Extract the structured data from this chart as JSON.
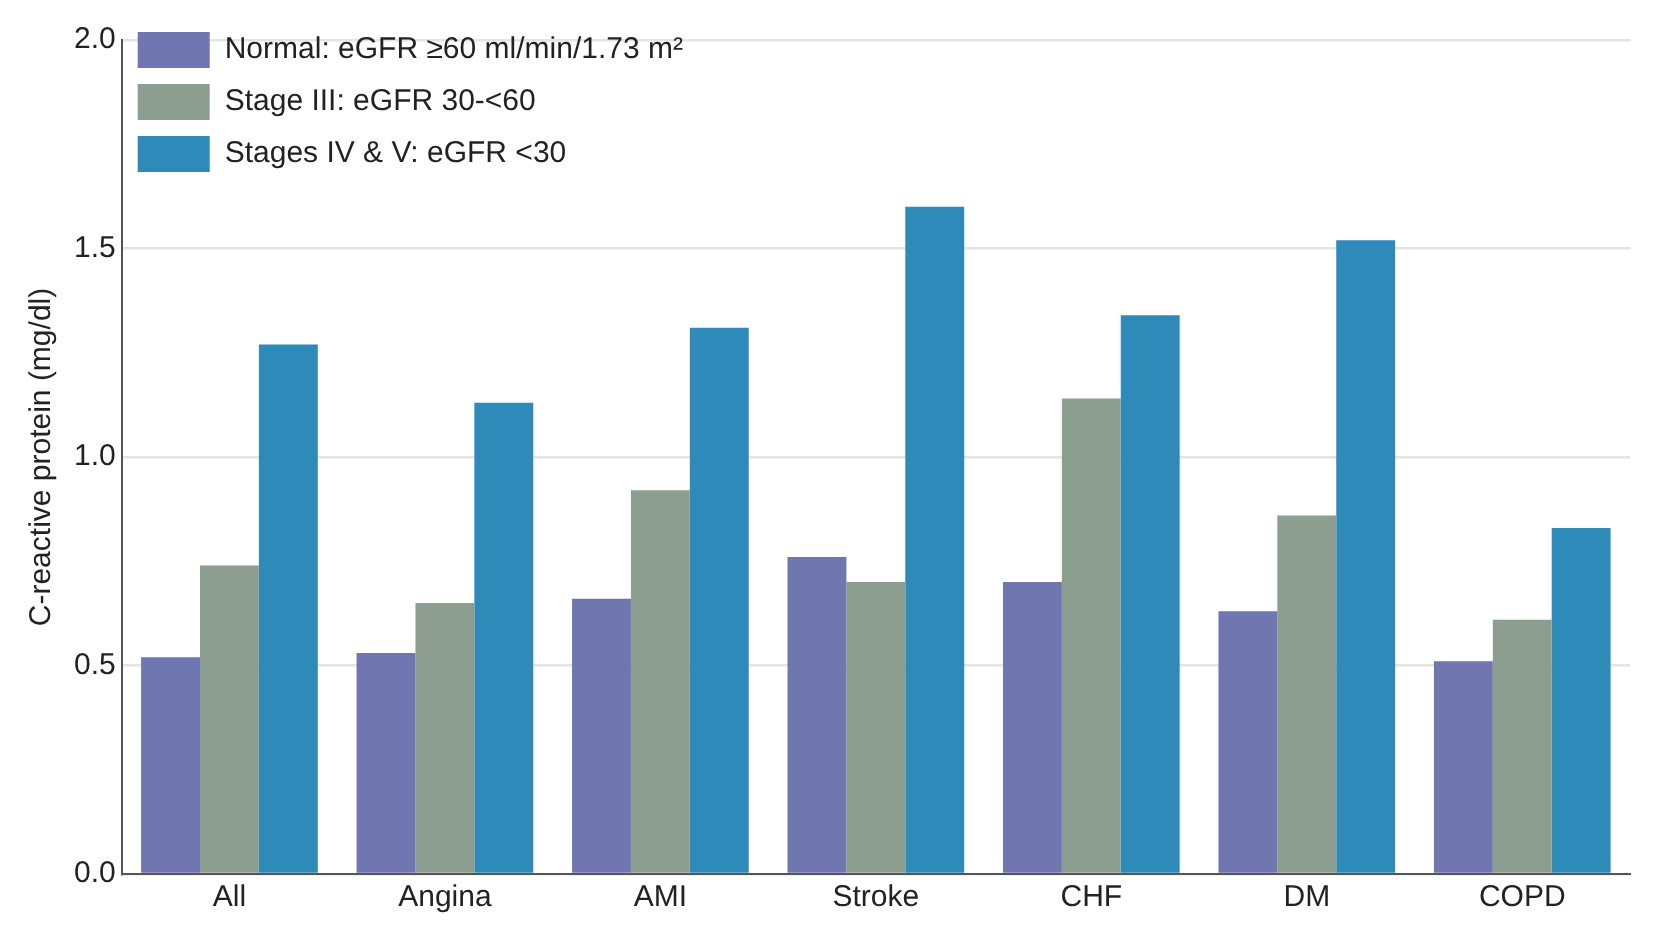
{
  "chart_data": {
    "type": "bar",
    "ylabel": "C-reactive protein (mg/dl)",
    "categories": [
      "All",
      "Angina",
      "AMI",
      "Stroke",
      "CHF",
      "DM",
      "COPD"
    ],
    "series": [
      {
        "name": "Normal: eGFR ≥60 ml/min/1.73 m²",
        "color": "#6f76b0",
        "values": [
          0.52,
          0.53,
          0.66,
          0.76,
          0.7,
          0.63,
          0.51
        ]
      },
      {
        "name": "Stage III: eGFR 30-<60",
        "color": "#8c9e90",
        "values": [
          0.74,
          0.65,
          0.92,
          0.7,
          1.14,
          0.86,
          0.61
        ]
      },
      {
        "name": "Stages IV & V: eGFR <30",
        "color": "#2e8ab8",
        "values": [
          1.27,
          1.13,
          1.31,
          1.6,
          1.34,
          1.52,
          0.83
        ]
      }
    ],
    "ylim": [
      0,
      2
    ],
    "yticks": [
      {
        "value": 0,
        "label": "0.0"
      },
      {
        "value": 0.5,
        "label": "0.5"
      },
      {
        "value": 1,
        "label": "1.0"
      },
      {
        "value": 1.5,
        "label": "1.5"
      },
      {
        "value": 2,
        "label": "2.0"
      }
    ],
    "grid": "y",
    "legend": "top left"
  }
}
